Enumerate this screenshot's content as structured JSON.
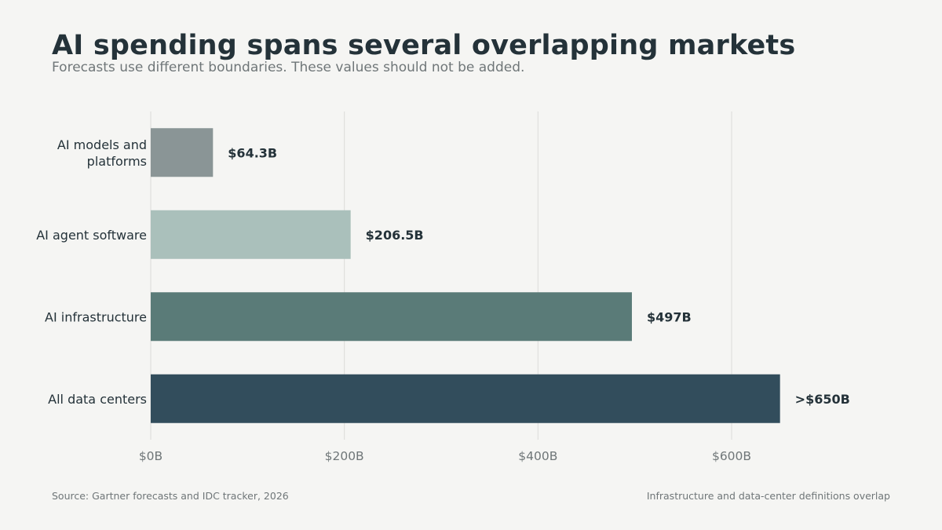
{
  "header": {
    "title": "AI spending spans several overlapping markets",
    "subtitle": "Forecasts use different boundaries. These values should not be added."
  },
  "footer": {
    "source": "Source: Gartner forecasts and IDC tracker, 2026",
    "note": "Infrastructure and data-center definitions overlap"
  },
  "chart_data": {
    "type": "bar",
    "orientation": "horizontal",
    "title": "AI spending spans several overlapping markets",
    "subtitle": "Forecasts use different boundaries. These values should not be added.",
    "categories": [
      [
        "AI models and",
        "platforms"
      ],
      [
        "AI agent software"
      ],
      [
        "AI infrastructure"
      ],
      [
        "All data centers"
      ]
    ],
    "values": [
      64.3,
      206.5,
      497,
      650
    ],
    "value_labels": [
      "$64.3B",
      "$206.5B",
      "$497B",
      ">$650B"
    ],
    "colors": [
      "#8a9596",
      "#aac0bb",
      "#5a7b78",
      "#324d5c"
    ],
    "xticks": [
      0,
      200,
      400,
      600
    ],
    "xtick_labels": [
      "$0B",
      "$200B",
      "$400B",
      "$600B"
    ],
    "xlim": [
      0,
      720
    ],
    "unit": "billion USD",
    "grid": "vertical",
    "legend": "none"
  }
}
